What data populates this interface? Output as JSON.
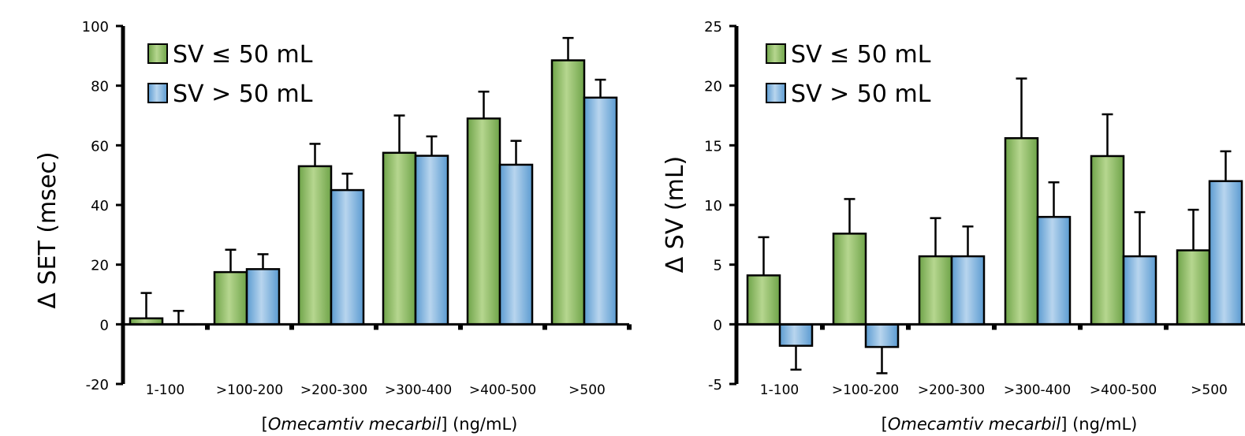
{
  "colors": {
    "green_dark": "#6fa449",
    "green_light": "#b6d68f",
    "blue_dark": "#5b9bd1",
    "blue_light": "#b8d5ee",
    "axis": "#000000"
  },
  "chart_data": [
    {
      "type": "bar",
      "ylabel": "Δ SET (msec)",
      "xlabel_prefix": "[",
      "xlabel_italic": "Omecamtiv mecarbil",
      "xlabel_suffix": "] (ng/mL)",
      "ylim": [
        -20,
        100
      ],
      "yticks": [
        -20,
        0,
        20,
        40,
        60,
        80,
        100
      ],
      "categories": [
        "1-100",
        ">100-200",
        ">200-300",
        ">300-400",
        ">400-500",
        ">500"
      ],
      "legend": {
        "placement": "top-left"
      },
      "series": [
        {
          "name": "SV ≤ 50 mL",
          "values": [
            2,
            17.5,
            53,
            57.5,
            69,
            88.5
          ],
          "errors": [
            8.5,
            7.5,
            7.5,
            12.5,
            9,
            7.5
          ]
        },
        {
          "name": "SV > 50 mL",
          "values": [
            0,
            18.5,
            45,
            56.5,
            53.5,
            76
          ],
          "errors": [
            4.5,
            5,
            5.5,
            6.5,
            8,
            6
          ]
        }
      ]
    },
    {
      "type": "bar",
      "ylabel": "Δ SV (mL)",
      "xlabel_prefix": "[",
      "xlabel_italic": "Omecamtiv mecarbil",
      "xlabel_suffix": "] (ng/mL)",
      "ylim": [
        -5,
        25
      ],
      "yticks": [
        -5,
        0,
        5,
        10,
        15,
        20,
        25
      ],
      "categories": [
        "1-100",
        ">100-200",
        ">200-300",
        ">300-400",
        ">400-500",
        ">500"
      ],
      "legend": {
        "placement": "top-left"
      },
      "series": [
        {
          "name": "SV ≤ 50 mL",
          "values": [
            4.1,
            7.6,
            5.7,
            15.6,
            14.1,
            6.2
          ],
          "errors": [
            3.2,
            2.9,
            3.2,
            5,
            3.5,
            3.4
          ]
        },
        {
          "name": "SV > 50 mL",
          "values": [
            -1.8,
            -1.9,
            5.7,
            9,
            5.7,
            12
          ],
          "errors": [
            2,
            2.2,
            2.5,
            2.9,
            3.7,
            2.5
          ]
        }
      ]
    }
  ]
}
